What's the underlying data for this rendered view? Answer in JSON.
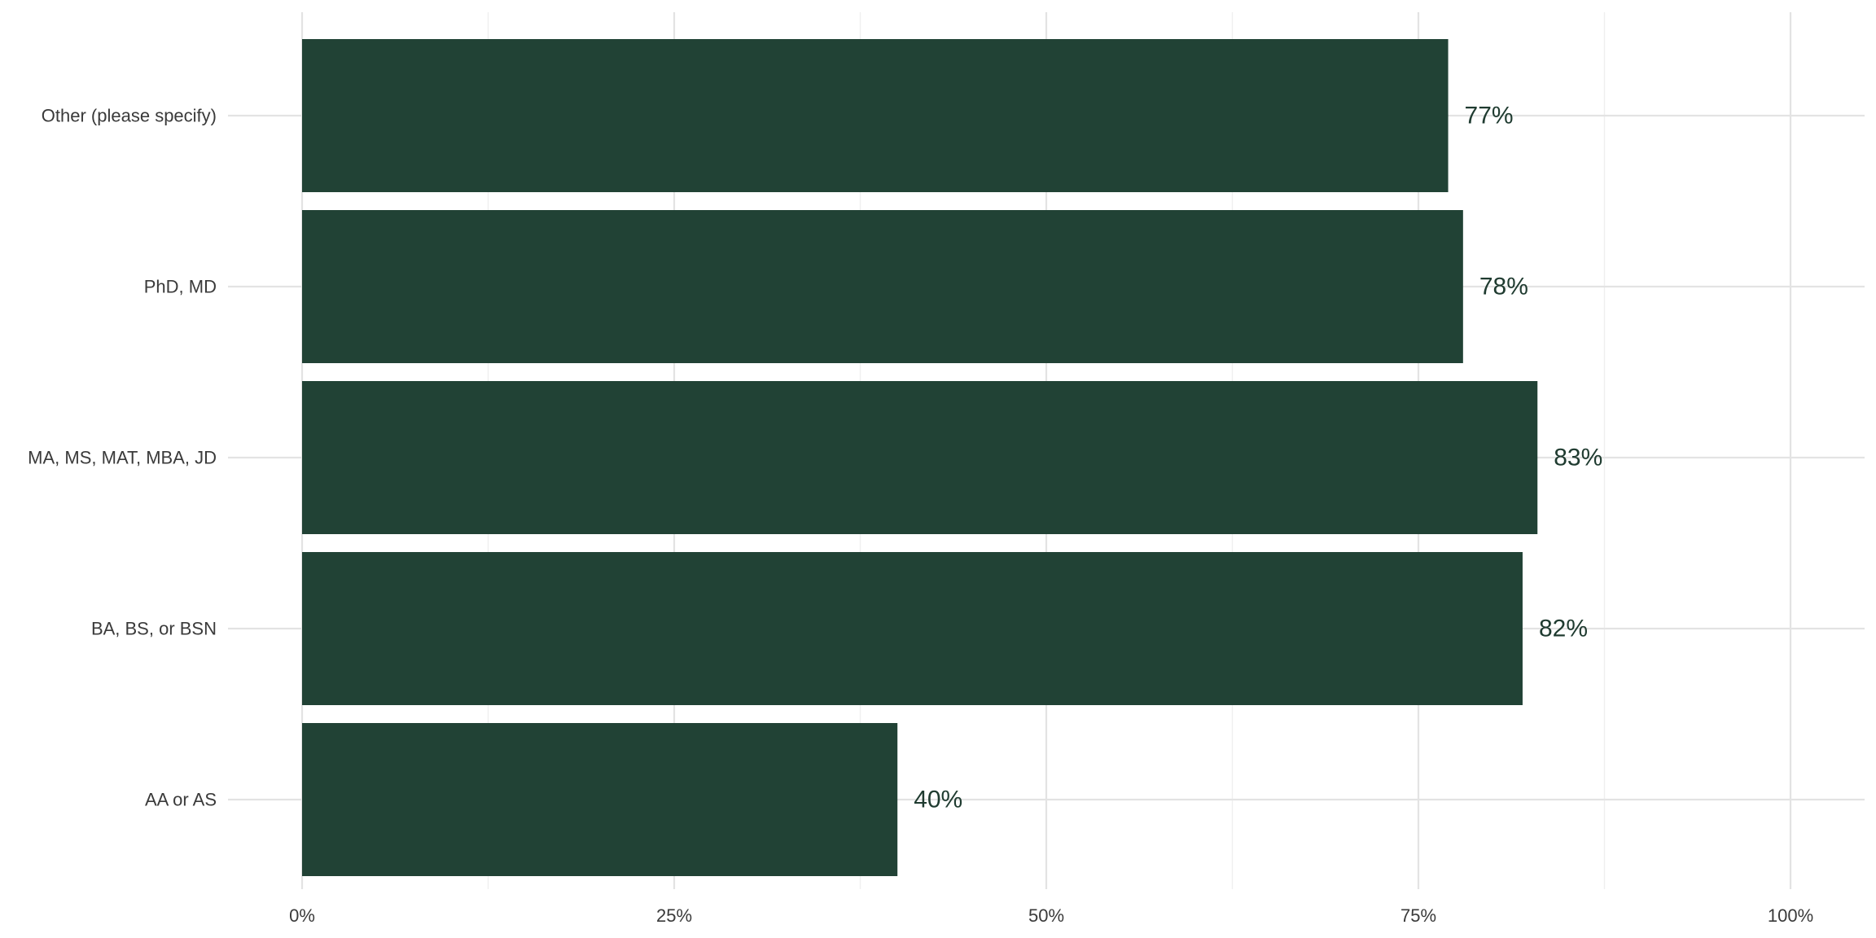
{
  "colors": {
    "bar": "#214235",
    "label": "#1f3b30",
    "grid_major": "#e3e3e3",
    "grid_minor": "#efefef",
    "text": "#3a3a3a"
  },
  "chart_data": {
    "type": "bar",
    "orientation": "horizontal",
    "title": "",
    "xlabel": "",
    "ylabel": "",
    "grid": true,
    "xlim": [
      0,
      1.05
    ],
    "x_ticks": [
      0,
      0.25,
      0.5,
      0.75,
      1.0
    ],
    "x_tick_labels": [
      "0%",
      "25%",
      "50%",
      "75%",
      "100%"
    ],
    "categories": [
      "Other (please specify)",
      "PhD, MD",
      "MA, MS, MAT, MBA, JD",
      "BA, BS, or BSN",
      "AA or AS"
    ],
    "values": [
      0.77,
      0.78,
      0.83,
      0.82,
      0.4
    ],
    "value_labels": [
      "77%",
      "78%",
      "83%",
      "82%",
      "40%"
    ]
  }
}
